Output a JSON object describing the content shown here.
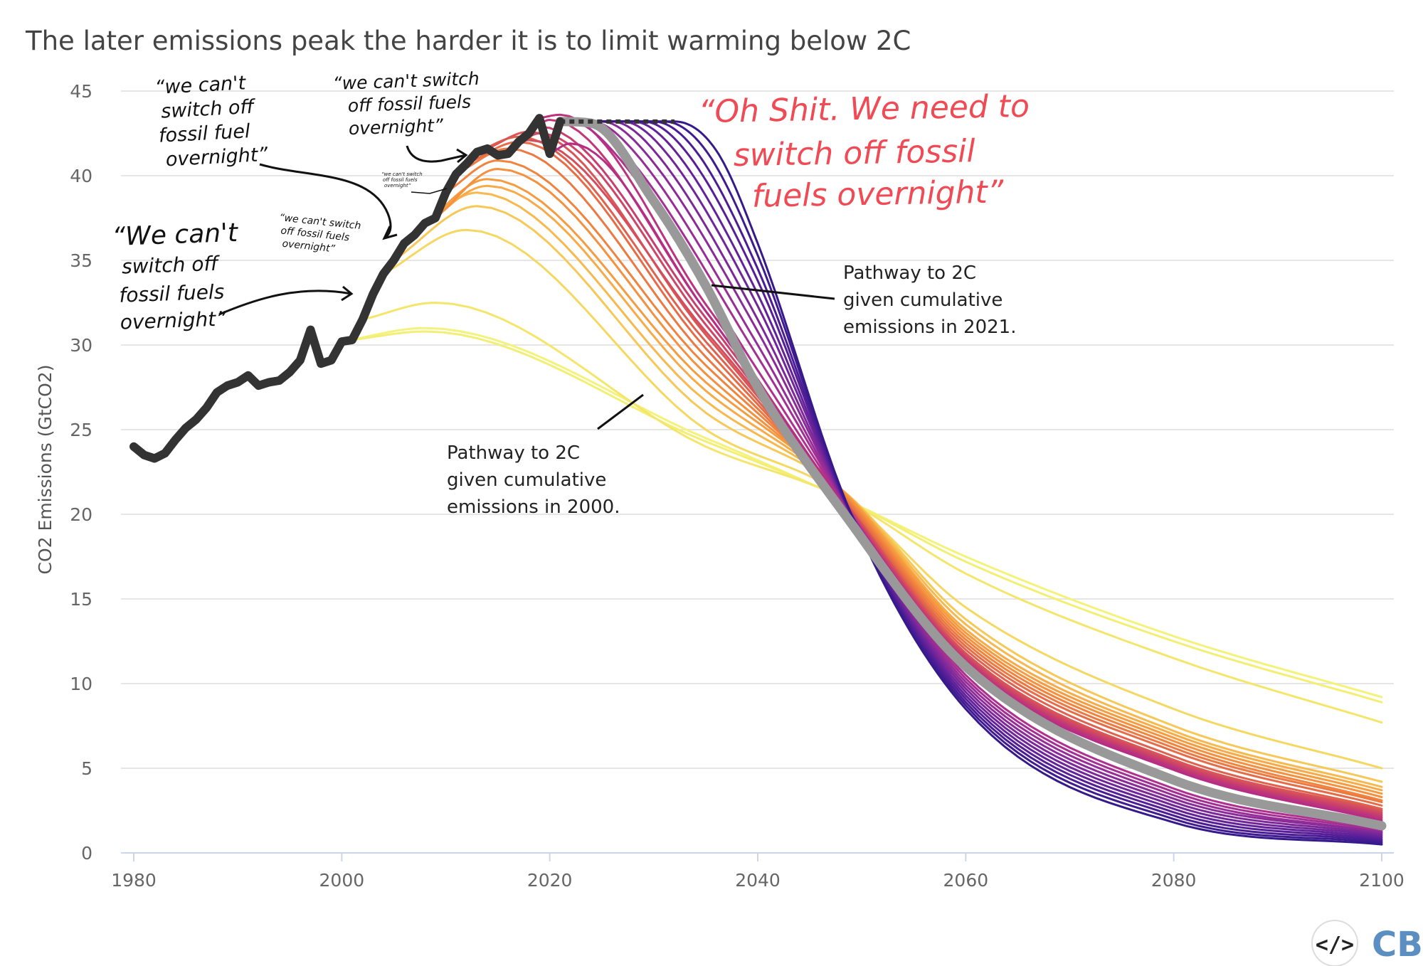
{
  "chart_data": {
    "type": "line",
    "title": "The later emissions peak the harder it is to limit warming below 2C",
    "xlabel": "",
    "ylabel": "CO2 Emissions (GtCO2)",
    "xlim": [
      1980,
      2100
    ],
    "ylim": [
      0,
      45
    ],
    "x_ticks": [
      "1980",
      "2000",
      "2020",
      "2040",
      "2060",
      "2080",
      "2100"
    ],
    "y_ticks": [
      "0",
      "5",
      "10",
      "15",
      "20",
      "25",
      "30",
      "35",
      "40",
      "45"
    ],
    "grid": "horizontal",
    "legend": "none",
    "historical": {
      "color": "#333333",
      "x": [
        1980,
        1981,
        1982,
        1983,
        1984,
        1985,
        1986,
        1987,
        1988,
        1989,
        1990,
        1991,
        1992,
        1993,
        1994,
        1995,
        1996,
        1997,
        1998,
        1999,
        2000,
        2001,
        2002,
        2003,
        2004,
        2005,
        2006,
        2007,
        2008,
        2009,
        2010,
        2011,
        2012,
        2013,
        2014,
        2015,
        2016,
        2017,
        2018,
        2019,
        2020,
        2021
      ],
      "y": [
        24.0,
        23.5,
        23.3,
        23.6,
        24.4,
        25.1,
        25.6,
        26.3,
        27.2,
        27.6,
        27.8,
        28.2,
        27.6,
        27.8,
        27.9,
        28.4,
        29.1,
        30.9,
        28.9,
        29.1,
        30.2,
        30.3,
        31.5,
        33.0,
        34.2,
        35.0,
        36.0,
        36.5,
        37.2,
        37.5,
        39.0,
        40.1,
        40.7,
        41.4,
        41.6,
        41.2,
        41.3,
        42.0,
        42.5,
        43.4,
        41.3,
        43.2
      ]
    },
    "flat_extension": {
      "color": "#333333",
      "x": [
        2021,
        2032
      ],
      "y": [
        43.2,
        43.2
      ]
    },
    "highlight_pathway": {
      "color": "#999999",
      "x": [
        2021,
        2024,
        2030,
        2035,
        2040,
        2048,
        2060,
        2080,
        2100
      ],
      "y": [
        43.2,
        43.1,
        38.5,
        33.5,
        27.5,
        20.3,
        11.0,
        4.3,
        1.6
      ]
    },
    "pathways": [
      {
        "color": "#f3f27a",
        "x": [
          2000,
          2008,
          2035,
          2048,
          2060,
          2080,
          2100
        ],
        "y": [
          30.2,
          31.0,
          24.5,
          21.0,
          17.5,
          12.8,
          9.2
        ]
      },
      {
        "color": "#f3ee74",
        "x": [
          2001,
          2008,
          2035,
          2048,
          2060,
          2080,
          2100
        ],
        "y": [
          30.3,
          30.8,
          24.3,
          21.0,
          17.2,
          12.5,
          8.9
        ]
      },
      {
        "color": "#f4e66c",
        "x": [
          2002,
          2009,
          2035,
          2048,
          2060,
          2080,
          2100
        ],
        "y": [
          31.5,
          32.5,
          24.0,
          21.0,
          16.5,
          11.5,
          7.7
        ]
      },
      {
        "color": "#f5d862",
        "x": [
          2004,
          2012,
          2035,
          2048,
          2060,
          2080,
          2100
        ],
        "y": [
          34.2,
          36.8,
          25.0,
          21.2,
          14.5,
          8.5,
          5.0
        ]
      },
      {
        "color": "#f6c858",
        "x": [
          2005,
          2013,
          2035,
          2048,
          2060,
          2080,
          2100
        ],
        "y": [
          35.0,
          38.2,
          26.0,
          21.5,
          13.8,
          7.5,
          4.2
        ]
      },
      {
        "color": "#f7b84e",
        "x": [
          2006,
          2013,
          2035,
          2048,
          2060,
          2080,
          2100
        ],
        "y": [
          36.0,
          39.0,
          26.7,
          21.5,
          13.5,
          7.2,
          3.9
        ]
      },
      {
        "color": "#f7aa46",
        "x": [
          2007,
          2014,
          2035,
          2048,
          2060,
          2080,
          2100
        ],
        "y": [
          36.5,
          39.4,
          27.3,
          21.5,
          13.2,
          7.0,
          3.7
        ]
      },
      {
        "color": "#f69c40",
        "x": [
          2008,
          2014,
          2035,
          2048,
          2060,
          2080,
          2100
        ],
        "y": [
          37.2,
          39.8,
          27.8,
          21.5,
          13.0,
          6.8,
          3.5
        ]
      },
      {
        "color": "#f4903e",
        "x": [
          2009,
          2015,
          2035,
          2048,
          2060,
          2080,
          2100
        ],
        "y": [
          37.5,
          40.4,
          28.3,
          21.4,
          12.8,
          6.6,
          3.3
        ]
      },
      {
        "color": "#f0843e",
        "x": [
          2010,
          2015,
          2035,
          2048,
          2060,
          2080,
          2100
        ],
        "y": [
          39.0,
          40.9,
          28.8,
          21.3,
          12.6,
          6.4,
          3.1
        ]
      },
      {
        "color": "#ec7842",
        "x": [
          2011,
          2016,
          2035,
          2048,
          2060,
          2080,
          2100
        ],
        "y": [
          40.1,
          41.6,
          29.3,
          21.2,
          12.4,
          6.2,
          3.0
        ]
      },
      {
        "color": "#e66c48",
        "x": [
          2012,
          2017,
          2035,
          2048,
          2060,
          2080,
          2100
        ],
        "y": [
          40.7,
          42.0,
          29.8,
          21.1,
          12.2,
          6.0,
          2.8
        ]
      },
      {
        "color": "#e0614e",
        "x": [
          2013,
          2017,
          2035,
          2048,
          2060,
          2080,
          2100
        ],
        "y": [
          41.4,
          42.3,
          30.2,
          21.0,
          12.0,
          5.7,
          2.6
        ]
      },
      {
        "color": "#da5656",
        "x": [
          2014,
          2018,
          2035,
          2048,
          2060,
          2080,
          2100
        ],
        "y": [
          41.6,
          42.6,
          30.6,
          21.0,
          11.8,
          5.5,
          2.5
        ]
      },
      {
        "color": "#d44e5e",
        "x": [
          2015,
          2018,
          2035,
          2048,
          2060,
          2080,
          2100
        ],
        "y": [
          41.2,
          42.1,
          30.8,
          21.0,
          11.7,
          5.4,
          2.4
        ]
      },
      {
        "color": "#ce4666",
        "x": [
          2016,
          2019,
          2035,
          2048,
          2060,
          2080,
          2100
        ],
        "y": [
          41.3,
          42.5,
          31.2,
          20.9,
          11.6,
          5.3,
          2.3
        ]
      },
      {
        "color": "#c83f6e",
        "x": [
          2017,
          2019,
          2035,
          2048,
          2060,
          2080,
          2100
        ],
        "y": [
          42.0,
          42.9,
          31.6,
          20.9,
          11.5,
          5.2,
          2.2
        ]
      },
      {
        "color": "#c23876",
        "x": [
          2018,
          2020,
          2035,
          2048,
          2060,
          2080,
          2100
        ],
        "y": [
          42.5,
          43.3,
          32.0,
          20.8,
          11.4,
          5.1,
          2.1
        ]
      },
      {
        "color": "#bb327e",
        "x": [
          2019,
          2021,
          2035,
          2048,
          2060,
          2080,
          2100
        ],
        "y": [
          43.4,
          43.6,
          32.4,
          20.8,
          11.3,
          5.0,
          2.0
        ]
      },
      {
        "color": "#b52e86",
        "x": [
          2020,
          2022,
          2035,
          2048,
          2060,
          2080,
          2100
        ],
        "y": [
          41.3,
          41.9,
          32.0,
          20.8,
          11.2,
          4.9,
          1.9
        ]
      },
      {
        "color": "#b0308f",
        "x": [
          2021,
          2022,
          2026,
          2040,
          2049,
          2060,
          2080,
          2100
        ],
        "y": [
          43.2,
          43.2,
          41.5,
          28.5,
          20.0,
          10.5,
          3.8,
          1.4
        ]
      },
      {
        "color": "#a42f93",
        "x": [
          2021,
          2023,
          2027,
          2040,
          2049,
          2060,
          2080,
          2100
        ],
        "y": [
          43.2,
          43.2,
          41.5,
          29.3,
          20.0,
          10.3,
          3.6,
          1.3
        ]
      },
      {
        "color": "#972d96",
        "x": [
          2021,
          2024,
          2028,
          2040,
          2049,
          2060,
          2080,
          2100
        ],
        "y": [
          43.2,
          43.2,
          41.5,
          30.0,
          20.0,
          10.1,
          3.4,
          1.2
        ]
      },
      {
        "color": "#8a2b98",
        "x": [
          2021,
          2025,
          2029,
          2040,
          2049,
          2060,
          2080,
          2100
        ],
        "y": [
          43.2,
          43.2,
          41.5,
          30.8,
          20.0,
          9.9,
          3.2,
          1.2
        ]
      },
      {
        "color": "#7d2899",
        "x": [
          2021,
          2026,
          2030,
          2040,
          2049,
          2060,
          2080,
          2100
        ],
        "y": [
          43.2,
          43.2,
          41.5,
          31.5,
          20.0,
          9.7,
          3.0,
          1.1
        ]
      },
      {
        "color": "#70259a",
        "x": [
          2021,
          2027,
          2031,
          2040,
          2049,
          2060,
          2080,
          2100
        ],
        "y": [
          43.2,
          43.2,
          41.5,
          32.3,
          20.0,
          9.5,
          2.8,
          1.0
        ]
      },
      {
        "color": "#632299",
        "x": [
          2021,
          2028,
          2032,
          2040,
          2049,
          2060,
          2080,
          2100
        ],
        "y": [
          43.2,
          43.2,
          41.5,
          33.0,
          20.0,
          9.3,
          2.6,
          0.9
        ]
      },
      {
        "color": "#571f97",
        "x": [
          2021,
          2029,
          2033,
          2040,
          2049,
          2060,
          2080,
          2100
        ],
        "y": [
          43.2,
          43.2,
          41.5,
          33.8,
          20.0,
          9.1,
          2.4,
          0.8
        ]
      },
      {
        "color": "#4b1d94",
        "x": [
          2021,
          2030,
          2034,
          2040,
          2049,
          2060,
          2080,
          2100
        ],
        "y": [
          43.2,
          43.2,
          41.5,
          34.5,
          20.0,
          8.9,
          2.2,
          0.7
        ]
      },
      {
        "color": "#401b90",
        "x": [
          2021,
          2031,
          2035,
          2040,
          2049,
          2060,
          2080,
          2100
        ],
        "y": [
          43.2,
          43.2,
          41.5,
          35.3,
          20.0,
          8.7,
          2.0,
          0.6
        ]
      },
      {
        "color": "#36198b",
        "x": [
          2021,
          2032,
          2036,
          2040,
          2049,
          2060,
          2080,
          2100
        ],
        "y": [
          43.2,
          43.2,
          41.5,
          36.0,
          20.0,
          8.5,
          1.8,
          0.5
        ]
      }
    ],
    "annotations": {
      "pathway_2021": [
        "Pathway to 2C",
        "given cumulative",
        "emissions in 2021."
      ],
      "pathway_2000": [
        "Pathway to 2C",
        "given cumulative",
        "emissions in 2000."
      ]
    }
  },
  "handwritten": {
    "note_top_left": [
      "“we can't",
      "switch off",
      "fossil fuel",
      "overnight”"
    ],
    "note_top_middle": [
      "“we can't switch",
      "off fossil fuels",
      "overnight”"
    ],
    "note_left": [
      "“We can't",
      "switch off",
      "fossil fuels",
      "overnight”"
    ],
    "note_small": [
      "“we can't switch",
      "off fossil fuels",
      "overnight”"
    ],
    "note_tiny": [
      "“we can't switch",
      "off fossil fuels",
      "overnight”"
    ],
    "note_red": [
      "“Oh Shit. We need to",
      "switch off fossil",
      "fuels overnight”"
    ],
    "red_color": "#f04a55"
  },
  "footer": {
    "embed_icon": "code-icon",
    "logo": "CB"
  }
}
